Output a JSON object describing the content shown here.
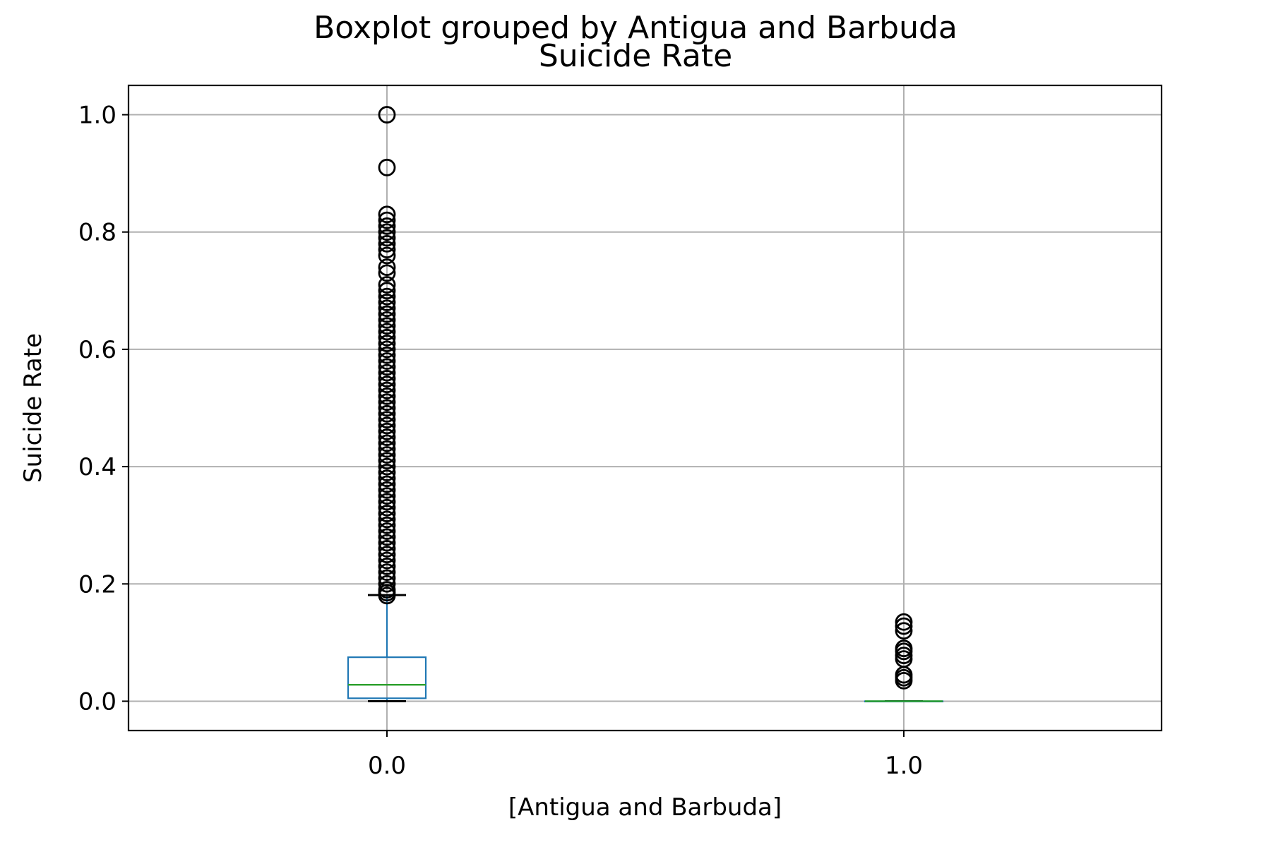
{
  "suptitle": "Boxplot grouped by Antigua and Barbuda",
  "chart_data": {
    "type": "boxplot",
    "title": "Suicide Rate",
    "xlabel": "[Antigua and Barbuda]",
    "ylabel": "Suicide Rate",
    "ylim": [
      -0.05,
      1.05
    ],
    "yticks": [
      0.0,
      0.2,
      0.4,
      0.6,
      0.8,
      1.0
    ],
    "ytick_labels": [
      "0.0",
      "0.2",
      "0.4",
      "0.6",
      "0.8",
      "1.0"
    ],
    "categories": [
      "0.0",
      "1.0"
    ],
    "grid": true,
    "colors": {
      "box": "#1f77b4",
      "median": "#2ca02c",
      "whisker_cap": "#000000",
      "grid": "#b0b0b0"
    },
    "boxes": [
      {
        "category": "0.0",
        "whislo": 0.0,
        "q1": 0.005,
        "med": 0.028,
        "q3": 0.075,
        "whishi": 0.181,
        "fliers": [
          1.0,
          0.91,
          0.83,
          0.82,
          0.81,
          0.8,
          0.79,
          0.78,
          0.77,
          0.76,
          0.74,
          0.73,
          0.71,
          0.7,
          0.69,
          0.68,
          0.67,
          0.66,
          0.65,
          0.64,
          0.63,
          0.62,
          0.61,
          0.6,
          0.59,
          0.58,
          0.57,
          0.56,
          0.55,
          0.54,
          0.53,
          0.52,
          0.51,
          0.5,
          0.49,
          0.48,
          0.47,
          0.46,
          0.45,
          0.44,
          0.43,
          0.42,
          0.41,
          0.4,
          0.39,
          0.38,
          0.37,
          0.36,
          0.35,
          0.34,
          0.33,
          0.32,
          0.31,
          0.3,
          0.29,
          0.28,
          0.27,
          0.26,
          0.25,
          0.24,
          0.23,
          0.22,
          0.21,
          0.2,
          0.19,
          0.185,
          0.18
        ]
      },
      {
        "category": "1.0",
        "whislo": 0.0,
        "q1": 0.0,
        "med": 0.0,
        "q3": 0.0,
        "whishi": 0.0,
        "fliers": [
          0.135,
          0.128,
          0.12,
          0.09,
          0.085,
          0.078,
          0.072,
          0.045,
          0.04,
          0.035
        ]
      }
    ]
  }
}
